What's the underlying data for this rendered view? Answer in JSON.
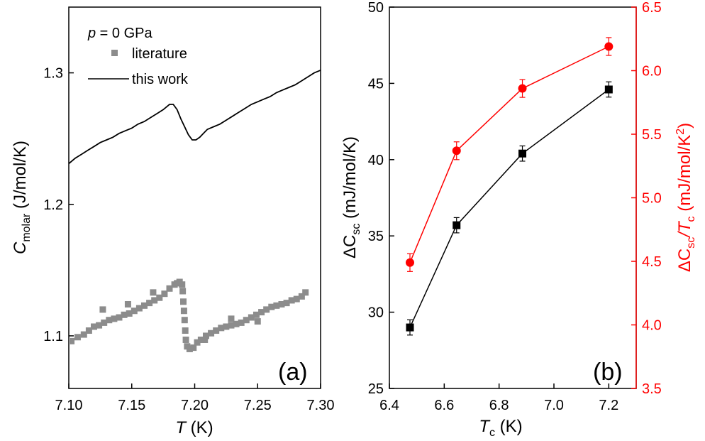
{
  "chart_data": [
    {
      "panel": "(a)",
      "type": "scatter",
      "xlabel": {
        "var": "T",
        "unit": " (K)"
      },
      "ylabel": {
        "var": "C",
        "sub": "molar",
        "unit": " (J/mol/K)"
      },
      "xlim": [
        7.1,
        7.3
      ],
      "ylim": [
        1.06,
        1.35
      ],
      "xticks": [
        "7.10",
        "7.15",
        "7.20",
        "7.25",
        "7.30"
      ],
      "xtick_values": [
        7.1,
        7.15,
        7.2,
        7.25,
        7.3
      ],
      "yticks": [
        "1.1",
        "1.2",
        "1.3"
      ],
      "ytick_values": [
        1.1,
        1.2,
        1.3
      ],
      "legend": {
        "title": {
          "var": "p",
          "text": " = 0 GPa"
        },
        "position": "top-left",
        "entries": [
          "literature",
          "this work"
        ]
      },
      "series": [
        {
          "name": "literature",
          "marker": "square",
          "color": "#8c8c8c",
          "x": [
            7.102,
            7.107,
            7.112,
            7.116,
            7.12,
            7.124,
            7.128,
            7.132,
            7.136,
            7.14,
            7.144,
            7.148,
            7.152,
            7.156,
            7.16,
            7.164,
            7.168,
            7.172,
            7.176,
            7.18,
            7.184,
            7.186,
            7.188,
            7.19,
            7.1905,
            7.191,
            7.1915,
            7.192,
            7.1925,
            7.193,
            7.194,
            7.196,
            7.199,
            7.202,
            7.205,
            7.209,
            7.213,
            7.217,
            7.221,
            7.225,
            7.229,
            7.233,
            7.237,
            7.241,
            7.245,
            7.249,
            7.253,
            7.257,
            7.261,
            7.265,
            7.269,
            7.273,
            7.277,
            7.281,
            7.285,
            7.288,
            7.127,
            7.147,
            7.167,
            7.208,
            7.229,
            7.25
          ],
          "y": [
            1.096,
            1.099,
            1.101,
            1.104,
            1.107,
            1.108,
            1.11,
            1.112,
            1.113,
            1.114,
            1.116,
            1.117,
            1.119,
            1.121,
            1.123,
            1.125,
            1.127,
            1.129,
            1.132,
            1.136,
            1.139,
            1.14,
            1.141,
            1.139,
            1.134,
            1.126,
            1.119,
            1.112,
            1.104,
            1.097,
            1.092,
            1.09,
            1.091,
            1.095,
            1.097,
            1.1,
            1.102,
            1.104,
            1.106,
            1.107,
            1.108,
            1.109,
            1.11,
            1.112,
            1.114,
            1.116,
            1.118,
            1.12,
            1.122,
            1.123,
            1.124,
            1.125,
            1.127,
            1.128,
            1.13,
            1.133,
            1.12,
            1.124,
            1.133,
            1.097,
            1.113,
            1.111
          ]
        },
        {
          "name": "this work",
          "type": "line",
          "color": "#000000",
          "x": [
            7.1,
            7.105,
            7.11,
            7.115,
            7.12,
            7.125,
            7.13,
            7.135,
            7.14,
            7.145,
            7.15,
            7.155,
            7.16,
            7.165,
            7.17,
            7.175,
            7.18,
            7.183,
            7.186,
            7.189,
            7.192,
            7.195,
            7.198,
            7.201,
            7.204,
            7.207,
            7.21,
            7.215,
            7.22,
            7.225,
            7.23,
            7.235,
            7.24,
            7.245,
            7.25,
            7.255,
            7.26,
            7.265,
            7.27,
            7.275,
            7.28,
            7.285,
            7.29,
            7.295,
            7.3
          ],
          "y": [
            1.231,
            1.235,
            1.238,
            1.241,
            1.244,
            1.247,
            1.249,
            1.251,
            1.254,
            1.256,
            1.258,
            1.261,
            1.263,
            1.266,
            1.269,
            1.272,
            1.276,
            1.276,
            1.272,
            1.265,
            1.259,
            1.253,
            1.249,
            1.249,
            1.251,
            1.254,
            1.257,
            1.259,
            1.261,
            1.264,
            1.267,
            1.27,
            1.273,
            1.276,
            1.278,
            1.28,
            1.282,
            1.285,
            1.287,
            1.289,
            1.291,
            1.294,
            1.297,
            1.3,
            1.302
          ]
        }
      ],
      "annotation": "(a)"
    },
    {
      "panel": "(b)",
      "type": "line",
      "xlabel": {
        "var": "T",
        "sub": "c",
        "unit": " (K)"
      },
      "ylabel_left": {
        "prefix": "ΔC",
        "sub": "sc",
        "unit": " (mJ/mol/K)"
      },
      "ylabel_right": {
        "prefix": "ΔC",
        "sub": "sc",
        "mid": "/T",
        "sub2": "c",
        "unit": " (mJ/mol/K",
        "sup": "2",
        "close": ")"
      },
      "xlim": [
        6.4,
        7.3
      ],
      "ylim_left": [
        25,
        50
      ],
      "ylim_right": [
        3.5,
        6.5
      ],
      "xticks": [
        "6.4",
        "6.6",
        "6.8",
        "7.0",
        "7.2"
      ],
      "xtick_values": [
        6.4,
        6.6,
        6.8,
        7.0,
        7.2
      ],
      "yticks_left": [
        "25",
        "30",
        "35",
        "40",
        "45",
        "50"
      ],
      "ytick_values_left": [
        25,
        30,
        35,
        40,
        45,
        50
      ],
      "yticks_right": [
        "3.5",
        "4.0",
        "4.5",
        "5.0",
        "5.5",
        "6.0",
        "6.5"
      ],
      "ytick_values_right": [
        3.5,
        4.0,
        4.5,
        5.0,
        5.5,
        6.0,
        6.5
      ],
      "series": [
        {
          "axis": "left",
          "marker": "square",
          "color": "#000000",
          "x": [
            6.475,
            6.645,
            6.885,
            7.2
          ],
          "y": [
            29.0,
            35.7,
            40.4,
            44.6
          ],
          "err": [
            0.5,
            0.5,
            0.5,
            0.5
          ]
        },
        {
          "axis": "right",
          "marker": "circle",
          "color": "#ff0000",
          "x": [
            6.475,
            6.645,
            6.885,
            7.2
          ],
          "y": [
            4.49,
            5.37,
            5.86,
            6.19
          ],
          "err": [
            0.07,
            0.07,
            0.07,
            0.07
          ]
        }
      ],
      "annotation": "(b)"
    }
  ]
}
